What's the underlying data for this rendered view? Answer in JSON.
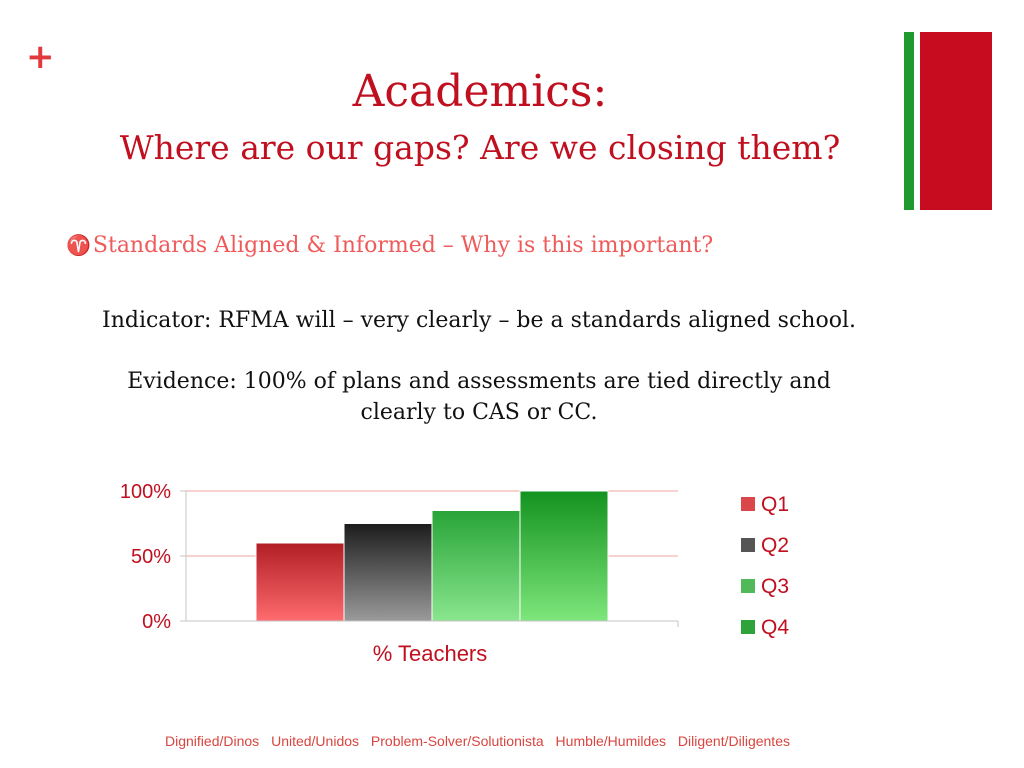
{
  "slide": {
    "plus": "+",
    "title": "Academics:",
    "subtitle": "Where are our gaps? Are we closing them?",
    "bullet_mark": "♈",
    "bullet": "Standards Aligned & Informed – Why is this important?",
    "indicator": "Indicator:  RFMA will – very clearly – be a standards aligned school.",
    "evidence": "Evidence: 100% of plans and assessments are tied directly and clearly to CAS or CC."
  },
  "colors": {
    "accent_red": "#c00f1f",
    "bullet_coral": "#ef5a5a",
    "side_green": "#1f9a2e",
    "side_red": "#c60c1e"
  },
  "chart_data": {
    "type": "bar",
    "categories": [
      "% Teachers"
    ],
    "series": [
      {
        "name": "Q1",
        "values": [
          60
        ],
        "color_top": "#b01e24",
        "color_bottom": "#ff6b6e",
        "legend_color": "#d9474b"
      },
      {
        "name": "Q2",
        "values": [
          75
        ],
        "color_top": "#1c1c1c",
        "color_bottom": "#9a9a9a",
        "legend_color": "#555555"
      },
      {
        "name": "Q3",
        "values": [
          85
        ],
        "color_top": "#28a437",
        "color_bottom": "#8ae68e",
        "legend_color": "#52b95a"
      },
      {
        "name": "Q4",
        "values": [
          100
        ],
        "color_top": "#13921f",
        "color_bottom": "#7ee67c",
        "legend_color": "#2da339"
      }
    ],
    "ylim": [
      0,
      100
    ],
    "yticks": [
      "0%",
      "50%",
      "100%"
    ],
    "ytick_values": [
      0,
      50,
      100
    ],
    "gridlines": true,
    "legend_position": "right"
  },
  "footer": {
    "values": [
      "Dignified/Dinos",
      "United/Unidos",
      "Problem-Solver/Solutionista",
      "Humble/Humildes",
      "Diligent/Diligentes"
    ]
  }
}
